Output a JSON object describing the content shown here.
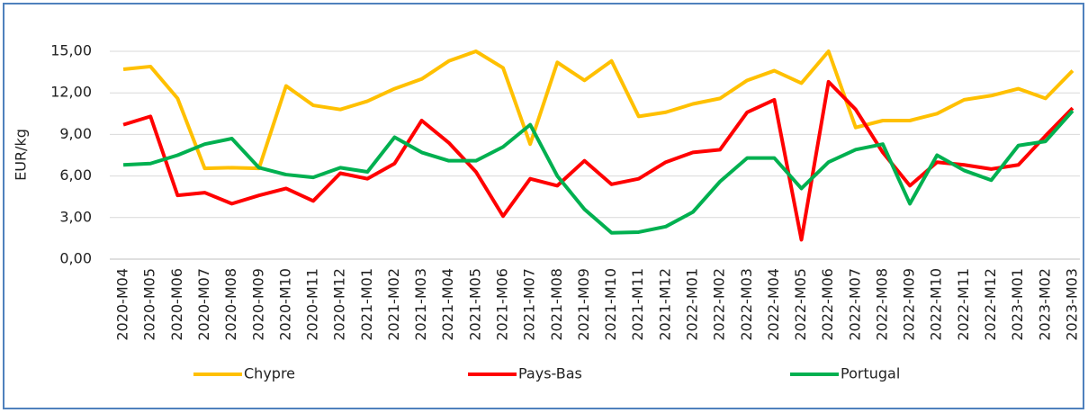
{
  "chart_data": {
    "type": "line",
    "y_label": "EUR/kg",
    "categories": [
      "2020-M04",
      "2020-M05",
      "2020-M06",
      "2020-M07",
      "2020-M08",
      "2020-M09",
      "2020-M10",
      "2020-M11",
      "2020-M12",
      "2021-M01",
      "2021-M02",
      "2021-M03",
      "2021-M04",
      "2021-M05",
      "2021-M06",
      "2021-M07",
      "2021-M08",
      "2021-M09",
      "2021-M10",
      "2021-M11",
      "2021-M12",
      "2022-M01",
      "2022-M02",
      "2022-M03",
      "2022-M04",
      "2022-M05",
      "2022-M06",
      "2022-M07",
      "2022-M08",
      "2022-M09",
      "2022-M10",
      "2022-M11",
      "2022-M12",
      "2023-M01",
      "2023-M02",
      "2023-M03"
    ],
    "series": [
      {
        "name": "Chypre",
        "color": "#ffc000",
        "values": [
          13.7,
          13.9,
          11.6,
          6.55,
          6.6,
          6.55,
          12.5,
          11.1,
          10.8,
          11.4,
          12.3,
          13.0,
          14.3,
          15.0,
          13.8,
          8.3,
          14.2,
          12.9,
          14.3,
          10.3,
          10.6,
          11.2,
          11.6,
          12.9,
          13.6,
          12.7,
          15.0,
          9.5,
          10.0,
          10.0,
          10.5,
          11.5,
          11.8,
          12.3,
          11.6,
          13.6
        ]
      },
      {
        "name": "Pays-Bas",
        "color": "#ff0000",
        "values": [
          9.7,
          10.3,
          4.6,
          4.8,
          4.0,
          4.6,
          5.1,
          4.2,
          6.2,
          5.8,
          6.9,
          10.0,
          8.4,
          6.3,
          3.1,
          5.8,
          5.3,
          7.1,
          5.4,
          5.8,
          7.0,
          7.7,
          7.9,
          10.6,
          11.5,
          1.4,
          12.8,
          10.8,
          7.7,
          5.3,
          7.0,
          6.8,
          6.5,
          6.8,
          8.9,
          10.9
        ]
      },
      {
        "name": "Portugal",
        "color": "#00b050",
        "values": [
          6.8,
          6.9,
          7.5,
          8.3,
          8.7,
          6.6,
          6.1,
          5.9,
          6.6,
          6.3,
          8.8,
          7.7,
          7.1,
          7.1,
          8.1,
          9.7,
          6.0,
          3.6,
          1.9,
          1.95,
          2.35,
          3.4,
          5.6,
          7.3,
          7.3,
          5.1,
          7.0,
          7.9,
          8.3,
          4.0,
          7.5,
          6.4,
          5.7,
          8.2,
          8.5,
          10.7
        ]
      }
    ],
    "ylim": [
      0,
      15
    ],
    "yticks": [
      {
        "value": 0,
        "label": "0,00"
      },
      {
        "value": 3,
        "label": "3,00"
      },
      {
        "value": 6,
        "label": "6,00"
      },
      {
        "value": 9,
        "label": "9,00"
      },
      {
        "value": 12,
        "label": "12,00"
      },
      {
        "value": 15,
        "label": "15,00"
      }
    ],
    "grid": true,
    "legend": "bottom"
  }
}
